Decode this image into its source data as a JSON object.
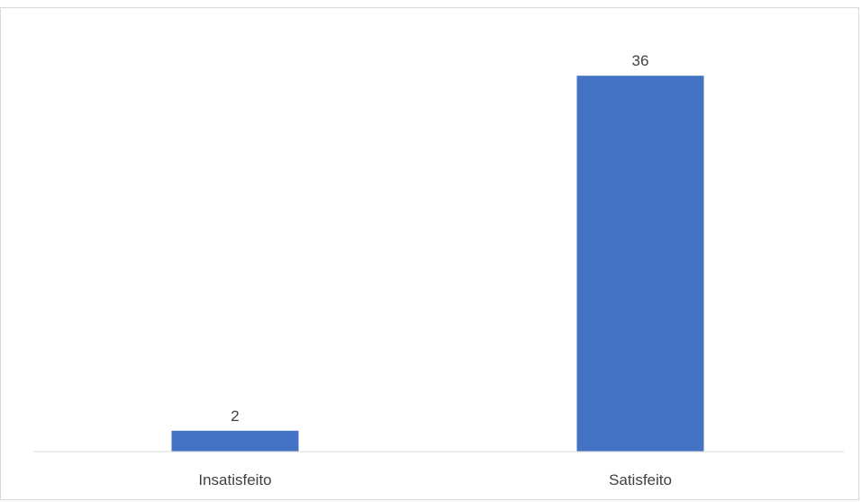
{
  "chart_data": {
    "type": "bar",
    "categories": [
      "Insatisfeito",
      "Satisfeito"
    ],
    "values": [
      2,
      36
    ],
    "data_labels": [
      "2",
      "36"
    ],
    "ylim": [
      0,
      38
    ],
    "grid": false,
    "legend": "none",
    "colors": {
      "bar": "#4472c4",
      "axis": "#d9d9d9",
      "text": "#404040"
    }
  }
}
